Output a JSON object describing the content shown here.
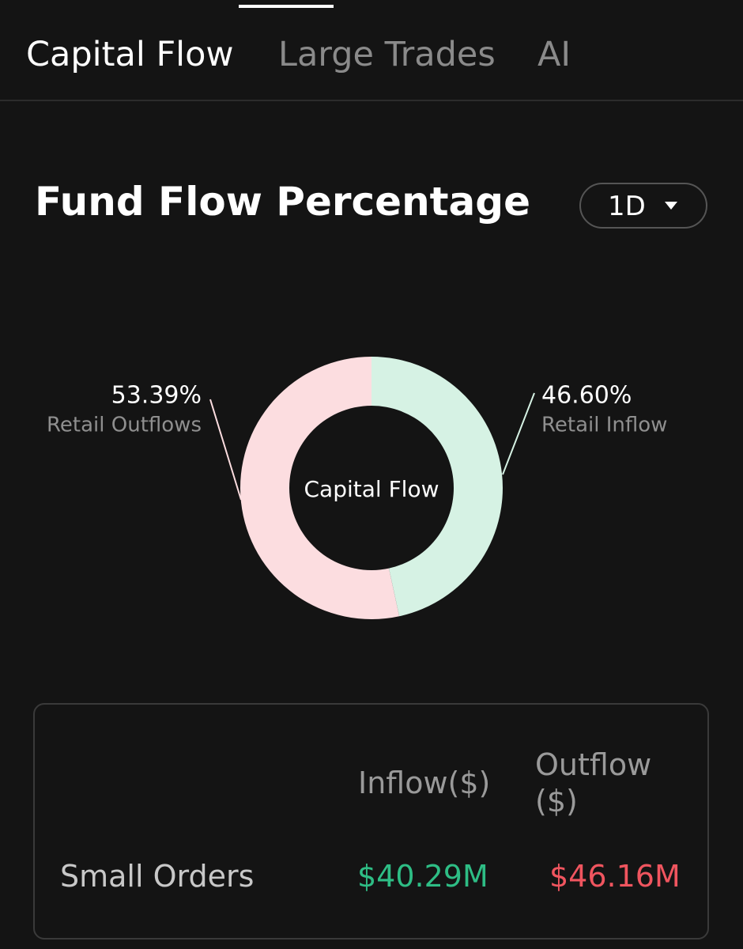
{
  "tabs": [
    "Capital Flow",
    "Large Trades",
    "AI"
  ],
  "section": {
    "title": "Fund Flow Percentage",
    "period": "1D"
  },
  "chart_data": {
    "type": "donut",
    "center_label": "Capital Flow",
    "categories": [
      "Retail Outflows",
      "Retail Inflow"
    ],
    "values": [
      53.39,
      46.6
    ],
    "value_labels": [
      "53.39%",
      "46.60%"
    ],
    "colors": [
      "#fcdde0",
      "#d6f2e4"
    ]
  },
  "table": {
    "headers": [
      "Inflow($)",
      "Outflow($)"
    ],
    "rows": [
      [
        "Small Orders",
        "$40.29M",
        "$46.16M"
      ]
    ]
  }
}
